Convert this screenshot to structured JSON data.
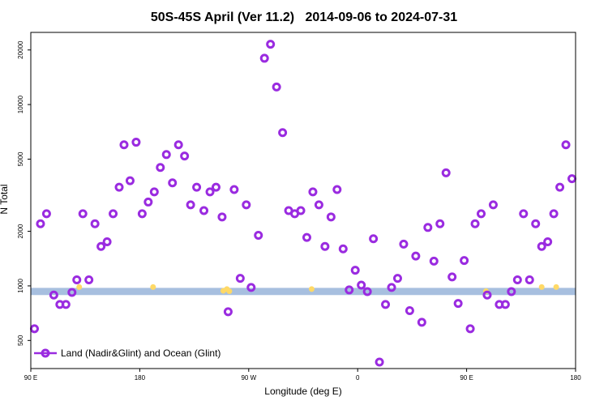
{
  "chart_data": {
    "type": "scatter",
    "title": "50S-45S April (Ver 11.2)   2014-09-06 to 2024-07-31",
    "xlabel": "Longitude (deg E)",
    "ylabel": "N Total",
    "x_scale": "longitude (90E to 180 wrapping)",
    "y_scale": "log",
    "ylim": [
      350,
      25000
    ],
    "x_ticks": [
      {
        "lon_unwrapped": 90,
        "label": "90 E"
      },
      {
        "lon_unwrapped": 180,
        "label": "180"
      },
      {
        "lon_unwrapped": 270,
        "label": "90 W"
      },
      {
        "lon_unwrapped": 360,
        "label": "0"
      },
      {
        "lon_unwrapped": 450,
        "label": "90 E"
      },
      {
        "lon_unwrapped": 540,
        "label": "180"
      }
    ],
    "y_ticks": [
      {
        "value": 500,
        "label": "500"
      },
      {
        "value": 1000,
        "label": "1000"
      },
      {
        "value": 2000,
        "label": "2000"
      },
      {
        "value": 5000,
        "label": "5000"
      },
      {
        "value": 10000,
        "label": "10000"
      },
      {
        "value": 20000,
        "label": "20000"
      }
    ],
    "band": {
      "ymin": 890,
      "ymax": 975,
      "color": "#a7bfdf"
    },
    "legend": {
      "label": "Land (Nadir&Glint) and Ocean (Glint)",
      "placement": "bottom-left"
    },
    "series": [
      {
        "name": "Land (Nadir&Glint) and Ocean (Glint)",
        "color": "#9a2be0",
        "lon_unwrapped": [
          93,
          98,
          103,
          109,
          114,
          119,
          124,
          128,
          133,
          138,
          143,
          148,
          153,
          158,
          163,
          167,
          172,
          177,
          182,
          187,
          192,
          197,
          202,
          207,
          212,
          217,
          222,
          227,
          233,
          238,
          243,
          248,
          253,
          258,
          263,
          268,
          272,
          278,
          283,
          288,
          293,
          298,
          303,
          308,
          313,
          318,
          323,
          328,
          333,
          338,
          343,
          348,
          353,
          358,
          363,
          368,
          373,
          378,
          383,
          388,
          393,
          398,
          403,
          408,
          413,
          418,
          423,
          428,
          433,
          438,
          443,
          448,
          453,
          457,
          462,
          467,
          472,
          477,
          482,
          487,
          492,
          497,
          502,
          507,
          512,
          517,
          522,
          527,
          532,
          537
        ],
        "values": [
          580,
          2200,
          2500,
          890,
          790,
          790,
          920,
          1080,
          2500,
          1080,
          2200,
          1650,
          1750,
          2500,
          3500,
          6000,
          3800,
          6200,
          2500,
          2900,
          3300,
          4500,
          5300,
          3700,
          6000,
          5200,
          2800,
          3500,
          2600,
          3300,
          3500,
          2400,
          720,
          3400,
          1100,
          2800,
          980,
          1900,
          18000,
          21500,
          12500,
          7000,
          2600,
          2500,
          2600,
          1850,
          3300,
          2800,
          1650,
          2400,
          3400,
          1600,
          950,
          1220,
          1010,
          930,
          1820,
          380,
          790,
          980,
          1100,
          1700,
          730,
          1460,
          630,
          2100,
          1370,
          2200,
          4200,
          1120,
          800,
          1380,
          580,
          2200,
          2500,
          890,
          2800,
          790,
          790,
          930,
          1080,
          2500,
          1080,
          2200,
          1650,
          1750,
          2500,
          3500,
          6000,
          3900
        ]
      }
    ],
    "highlight_points": {
      "color": "#ffd966",
      "lon_unwrapped": [
        130,
        191,
        249,
        252,
        254,
        322,
        466,
        512,
        524
      ],
      "values": [
        985,
        985,
        940,
        960,
        935,
        960,
        935,
        985,
        985
      ]
    }
  }
}
